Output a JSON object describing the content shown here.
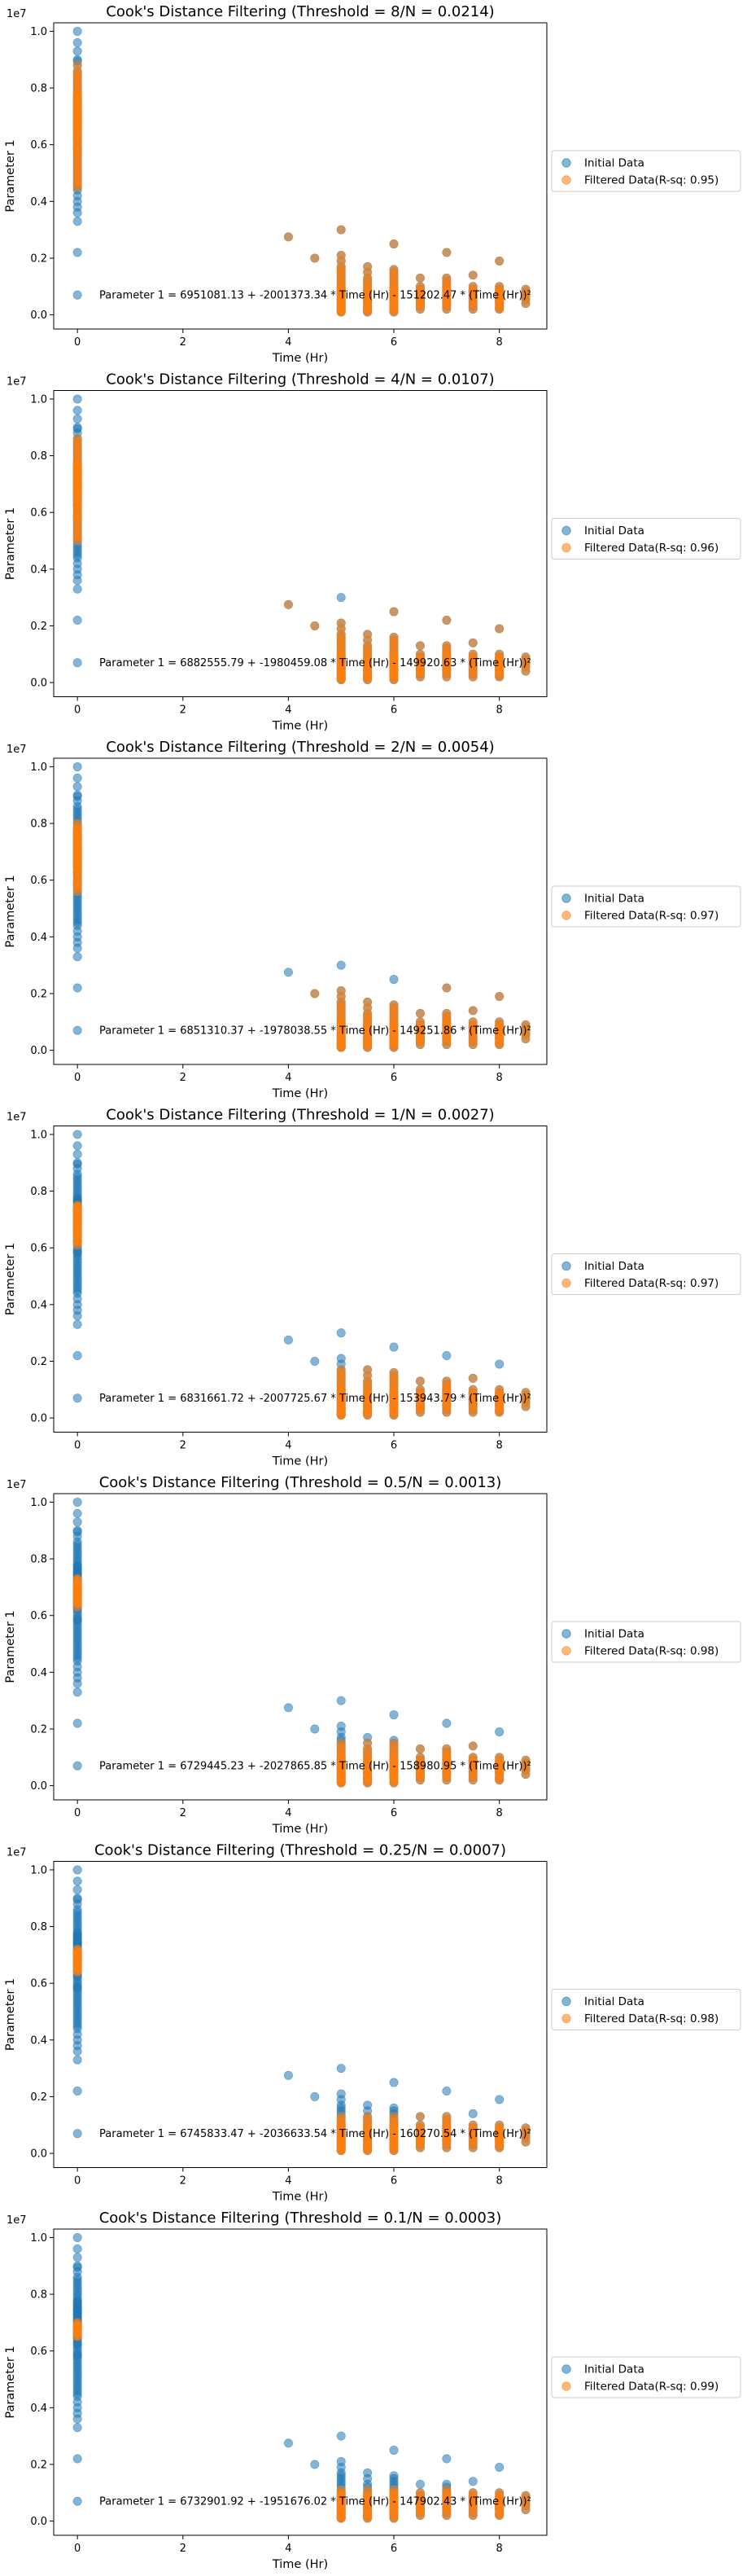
{
  "chart_data": [
    {
      "type": "scatter",
      "title": "Cook's Distance Filtering (Threshold = 8/N = 0.0214)",
      "xlabel": "Time (Hr)",
      "ylabel": "Parameter 1",
      "y_exponent_label": "1e7",
      "xlim": [
        -0.45,
        8.9
      ],
      "ylim": [
        -0.5,
        10.3
      ],
      "x_ticks": [
        0,
        2,
        4,
        6,
        8
      ],
      "y_ticks": [
        0.0,
        0.2,
        0.4,
        0.6,
        0.8,
        1.0
      ],
      "y_tick_labels": [
        "0.0",
        "0.2",
        "0.4",
        "0.6",
        "0.8",
        "1.0"
      ],
      "legend": {
        "position": "right-outside",
        "entries": [
          "Initial Data",
          "Filtered Data(R-sq: 0.95)"
        ]
      },
      "equation": "Parameter 1 = 6951081.13 + -2001373.34 * Time (Hr) - 151202.47 * (Time (Hr))²",
      "filtered_y_range_at_0": [
        4.5,
        8.9
      ],
      "filtered_keep_max_offset": 3.0
    },
    {
      "type": "scatter",
      "title": "Cook's Distance Filtering (Threshold = 4/N = 0.0107)",
      "xlabel": "Time (Hr)",
      "ylabel": "Parameter 1",
      "y_exponent_label": "1e7",
      "xlim": [
        -0.45,
        8.9
      ],
      "ylim": [
        -0.5,
        10.3
      ],
      "x_ticks": [
        0,
        2,
        4,
        6,
        8
      ],
      "y_ticks": [
        0.0,
        0.2,
        0.4,
        0.6,
        0.8,
        1.0
      ],
      "y_tick_labels": [
        "0.0",
        "0.2",
        "0.4",
        "0.6",
        "0.8",
        "1.0"
      ],
      "legend": {
        "position": "right-outside",
        "entries": [
          "Initial Data",
          "Filtered Data(R-sq: 0.96)"
        ]
      },
      "equation": "Parameter 1 = 6882555.79 + -1980459.08 * Time (Hr) - 149920.63 * (Time (Hr))²",
      "filtered_y_range_at_0": [
        5.0,
        8.6
      ],
      "filtered_keep_max_offset": 2.5
    },
    {
      "type": "scatter",
      "title": "Cook's Distance Filtering (Threshold = 2/N = 0.0054)",
      "xlabel": "Time (Hr)",
      "ylabel": "Parameter 1",
      "y_exponent_label": "1e7",
      "xlim": [
        -0.45,
        8.9
      ],
      "ylim": [
        -0.5,
        10.3
      ],
      "x_ticks": [
        0,
        2,
        4,
        6,
        8
      ],
      "y_ticks": [
        0.0,
        0.2,
        0.4,
        0.6,
        0.8,
        1.0
      ],
      "y_tick_labels": [
        "0.0",
        "0.2",
        "0.4",
        "0.6",
        "0.8",
        "1.0"
      ],
      "legend": {
        "position": "right-outside",
        "entries": [
          "Initial Data",
          "Filtered Data(R-sq: 0.97)"
        ]
      },
      "equation": "Parameter 1 = 6851310.37 + -1978038.55 * Time (Hr) - 149251.86 * (Time (Hr))²",
      "filtered_y_range_at_0": [
        5.6,
        8.0
      ],
      "filtered_keep_max_offset": 2.0
    },
    {
      "type": "scatter",
      "title": "Cook's Distance Filtering (Threshold = 1/N = 0.0027)",
      "xlabel": "Time (Hr)",
      "ylabel": "Parameter 1",
      "y_exponent_label": "1e7",
      "xlim": [
        -0.45,
        8.9
      ],
      "ylim": [
        -0.5,
        10.3
      ],
      "x_ticks": [
        0,
        2,
        4,
        6,
        8
      ],
      "y_ticks": [
        0.0,
        0.2,
        0.4,
        0.6,
        0.8,
        1.0
      ],
      "y_tick_labels": [
        "0.0",
        "0.2",
        "0.4",
        "0.6",
        "0.8",
        "1.0"
      ],
      "legend": {
        "position": "right-outside",
        "entries": [
          "Initial Data",
          "Filtered Data(R-sq: 0.97)"
        ]
      },
      "equation": "Parameter 1 = 6831661.72 + -2007725.67 * Time (Hr) - 153943.79 * (Time (Hr))²",
      "filtered_y_range_at_0": [
        6.1,
        7.5
      ],
      "filtered_keep_max_offset": 1.5
    },
    {
      "type": "scatter",
      "title": "Cook's Distance Filtering (Threshold = 0.5/N = 0.0013)",
      "xlabel": "Time (Hr)",
      "ylabel": "Parameter 1",
      "y_exponent_label": "1e7",
      "xlim": [
        -0.45,
        8.9
      ],
      "ylim": [
        -0.5,
        10.3
      ],
      "x_ticks": [
        0,
        2,
        4,
        6,
        8
      ],
      "y_ticks": [
        0.0,
        0.2,
        0.4,
        0.6,
        0.8,
        1.0
      ],
      "y_tick_labels": [
        "0.0",
        "0.2",
        "0.4",
        "0.6",
        "0.8",
        "1.0"
      ],
      "legend": {
        "position": "right-outside",
        "entries": [
          "Initial Data",
          "Filtered Data(R-sq: 0.98)"
        ]
      },
      "equation": "Parameter 1 = 6729445.23 + -2027865.85 * Time (Hr) - 158980.95 * (Time (Hr))²",
      "filtered_y_range_at_0": [
        6.3,
        7.3
      ],
      "filtered_keep_max_offset": 1.2
    },
    {
      "type": "scatter",
      "title": "Cook's Distance Filtering (Threshold = 0.25/N = 0.0007)",
      "xlabel": "Time (Hr)",
      "ylabel": "Parameter 1",
      "y_exponent_label": "1e7",
      "xlim": [
        -0.45,
        8.9
      ],
      "ylim": [
        -0.5,
        10.3
      ],
      "x_ticks": [
        0,
        2,
        4,
        6,
        8
      ],
      "y_ticks": [
        0.0,
        0.2,
        0.4,
        0.6,
        0.8,
        1.0
      ],
      "y_tick_labels": [
        "0.0",
        "0.2",
        "0.4",
        "0.6",
        "0.8",
        "1.0"
      ],
      "legend": {
        "position": "right-outside",
        "entries": [
          "Initial Data",
          "Filtered Data(R-sq: 0.98)"
        ]
      },
      "equation": "Parameter 1 = 6745833.47 + -2036633.54 * Time (Hr) - 160270.54 * (Time (Hr))²",
      "filtered_y_range_at_0": [
        6.4,
        7.2
      ],
      "filtered_keep_max_offset": 1.0
    },
    {
      "type": "scatter",
      "title": "Cook's Distance Filtering (Threshold = 0.1/N = 0.0003)",
      "xlabel": "Time (Hr)",
      "ylabel": "Parameter 1",
      "y_exponent_label": "1e7",
      "xlim": [
        -0.45,
        8.9
      ],
      "ylim": [
        -0.5,
        10.3
      ],
      "x_ticks": [
        0,
        2,
        4,
        6,
        8
      ],
      "y_ticks": [
        0.0,
        0.2,
        0.4,
        0.6,
        0.8,
        1.0
      ],
      "y_tick_labels": [
        "0.0",
        "0.2",
        "0.4",
        "0.6",
        "0.8",
        "1.0"
      ],
      "legend": {
        "position": "right-outside",
        "entries": [
          "Initial Data",
          "Filtered Data(R-sq: 0.99)"
        ]
      },
      "equation": "Parameter 1 = 6732901.92 + -1951676.02 * Time (Hr) - 147902.43 * (Time (Hr))²",
      "filtered_y_range_at_0": [
        6.5,
        7.0
      ],
      "filtered_keep_max_offset": 0.85
    }
  ],
  "initial_data": {
    "x": [
      0,
      0,
      0,
      0,
      0,
      0,
      0,
      0,
      0,
      0,
      0,
      0,
      0,
      0,
      0,
      0,
      0,
      0,
      0,
      0,
      0,
      0,
      0,
      0,
      0,
      0,
      0,
      0,
      0,
      0,
      0,
      0,
      0,
      0,
      0,
      0,
      0,
      0,
      0,
      0,
      0,
      0,
      0,
      0,
      0,
      0,
      0,
      0,
      0,
      0,
      0,
      0,
      0,
      0,
      0,
      0,
      0,
      0,
      0,
      0,
      0,
      0,
      0,
      0,
      0,
      0,
      0,
      0,
      0,
      0,
      0,
      0,
      0,
      0,
      0,
      4,
      4.5,
      5,
      5,
      5,
      5,
      5,
      5,
      5,
      5,
      5,
      5,
      5,
      5,
      5,
      5,
      5,
      5,
      5,
      5,
      5,
      5,
      5,
      5,
      5,
      5,
      5,
      5,
      5,
      5,
      5,
      5,
      5.5,
      5.5,
      5.5,
      5.5,
      5.5,
      5.5,
      5.5,
      5.5,
      5.5,
      5.5,
      5.5,
      5.5,
      5.5,
      5.5,
      5.5,
      5.5,
      5.5,
      5.5,
      5.5,
      5.5,
      6,
      6,
      6,
      6,
      6,
      6,
      6,
      6,
      6,
      6,
      6,
      6,
      6,
      6,
      6,
      6,
      6,
      6,
      6,
      6,
      6,
      6,
      6,
      6,
      6,
      6,
      6.5,
      6.5,
      6.5,
      6.5,
      6.5,
      6.5,
      6.5,
      6.5,
      6.5,
      6.5,
      6.5,
      6.5,
      6.5,
      6.5,
      7,
      7,
      7,
      7,
      7,
      7,
      7,
      7,
      7,
      7,
      7,
      7,
      7,
      7,
      7,
      7,
      7,
      7,
      7.5,
      7.5,
      7.5,
      7.5,
      7.5,
      7.5,
      7.5,
      7.5,
      7.5,
      7.5,
      7.5,
      7.5,
      8,
      8,
      8,
      8,
      8,
      8,
      8,
      8,
      8,
      8,
      8,
      8,
      8,
      8,
      8,
      8,
      8.5,
      8.5,
      8.5,
      8.5,
      8.5
    ],
    "y": [
      10.0,
      9.6,
      9.3,
      9.0,
      8.8,
      8.6,
      8.5,
      8.4,
      8.3,
      8.2,
      8.1,
      8.0,
      7.9,
      7.8,
      7.75,
      7.7,
      7.65,
      7.6,
      7.55,
      7.5,
      7.45,
      7.4,
      7.35,
      7.3,
      7.25,
      7.2,
      7.15,
      7.1,
      7.05,
      7.0,
      6.95,
      6.9,
      6.85,
      6.8,
      6.75,
      6.7,
      6.65,
      6.6,
      6.55,
      6.5,
      6.45,
      6.4,
      6.3,
      6.2,
      6.1,
      6.0,
      5.9,
      5.8,
      5.7,
      5.6,
      5.5,
      5.4,
      5.3,
      5.2,
      5.1,
      5.0,
      4.9,
      4.8,
      4.7,
      4.6,
      4.5,
      4.4,
      4.2,
      4.0,
      3.8,
      3.6,
      3.3,
      2.2,
      0.7,
      8.95,
      6.25,
      5.85,
      7.05,
      7.45,
      6.85,
      2.75,
      2.0,
      3.0,
      2.1,
      1.9,
      1.7,
      1.6,
      1.5,
      1.4,
      1.3,
      1.2,
      1.1,
      1.0,
      0.95,
      0.9,
      0.85,
      0.8,
      0.75,
      0.7,
      0.65,
      0.6,
      0.55,
      0.5,
      0.45,
      0.4,
      0.35,
      0.3,
      0.25,
      0.2,
      0.15,
      0.12,
      0.1,
      1.7,
      1.5,
      1.3,
      1.2,
      1.1,
      1.0,
      0.9,
      0.85,
      0.8,
      0.7,
      0.65,
      0.6,
      0.5,
      0.45,
      0.4,
      0.3,
      0.25,
      0.2,
      0.15,
      0.1,
      2.5,
      1.6,
      1.5,
      1.4,
      1.3,
      1.2,
      1.1,
      1.0,
      0.95,
      0.9,
      0.85,
      0.8,
      0.75,
      0.7,
      0.65,
      0.6,
      0.55,
      0.5,
      0.45,
      0.4,
      0.35,
      0.3,
      0.25,
      0.2,
      0.15,
      0.1,
      1.3,
      1.0,
      0.9,
      0.85,
      0.8,
      0.7,
      0.65,
      0.6,
      0.5,
      0.45,
      0.4,
      0.35,
      0.3,
      0.2,
      2.2,
      1.3,
      1.2,
      1.1,
      1.0,
      0.95,
      0.9,
      0.85,
      0.8,
      0.75,
      0.7,
      0.65,
      0.6,
      0.5,
      0.45,
      0.4,
      0.3,
      0.2,
      1.4,
      1.0,
      0.9,
      0.85,
      0.8,
      0.7,
      0.65,
      0.6,
      0.5,
      0.4,
      0.3,
      0.2,
      1.9,
      1.0,
      0.9,
      0.85,
      0.8,
      0.75,
      0.7,
      0.65,
      0.6,
      0.55,
      0.5,
      0.45,
      0.4,
      0.3,
      0.25,
      0.2,
      0.9,
      0.8,
      0.65,
      0.55,
      0.4
    ]
  },
  "colors": {
    "initial": "#1f77b4",
    "filtered": "#ff7f0e"
  }
}
